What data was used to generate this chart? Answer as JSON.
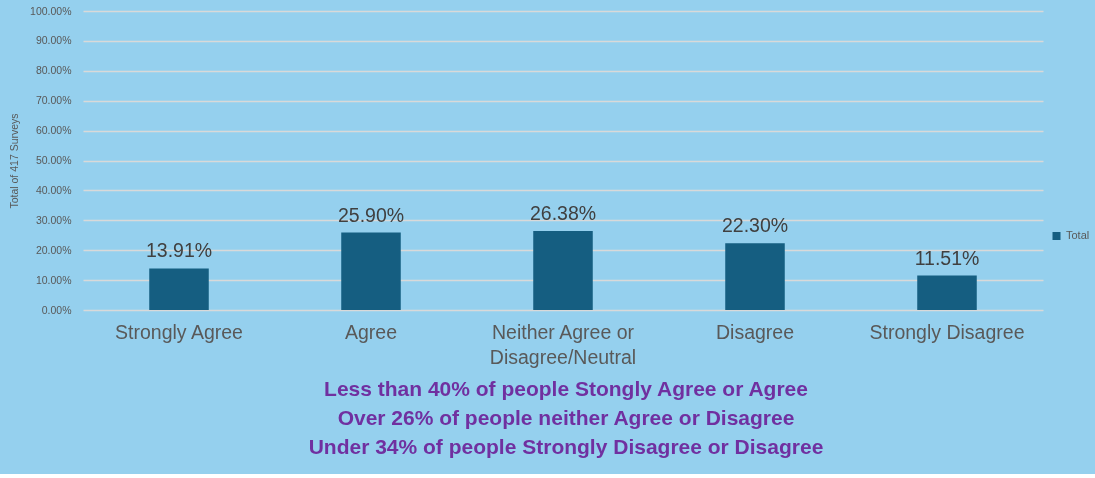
{
  "chart_data": {
    "type": "bar",
    "categories": [
      "Strongly Agree",
      "Agree",
      "Neither Agree or Disagree/Neutral",
      "Disagree",
      "Strongly Disagree"
    ],
    "series": [
      {
        "name": "Total",
        "color": "#155e81",
        "values": [
          13.91,
          25.9,
          26.38,
          22.3,
          11.51
        ],
        "value_labels": [
          "13.91%",
          "25.90%",
          "26.38%",
          "22.30%",
          "11.51%"
        ]
      }
    ],
    "ylabel": "Total of 417 Surveys",
    "ylim": [
      0,
      100
    ],
    "yticks": [
      {
        "value": 0,
        "label": "0.00%"
      },
      {
        "value": 10,
        "label": "10.00%"
      },
      {
        "value": 20,
        "label": "20.00%"
      },
      {
        "value": 30,
        "label": "30.00%"
      },
      {
        "value": 40,
        "label": "40.00%"
      },
      {
        "value": 50,
        "label": "50.00%"
      },
      {
        "value": 60,
        "label": "60.00%"
      },
      {
        "value": 70,
        "label": "70.00%"
      },
      {
        "value": 80,
        "label": "80.00%"
      },
      {
        "value": 90,
        "label": "90.00%"
      },
      {
        "value": 100,
        "label": "100.00%"
      }
    ],
    "grid": "y",
    "legend": "right",
    "annotations": [
      "Less than 40% of people Stongly Agree or Agree",
      "Over 26% of people neither Agree or Disagree",
      "Under 34% of people Strongly Disagree or Disagree"
    ]
  }
}
